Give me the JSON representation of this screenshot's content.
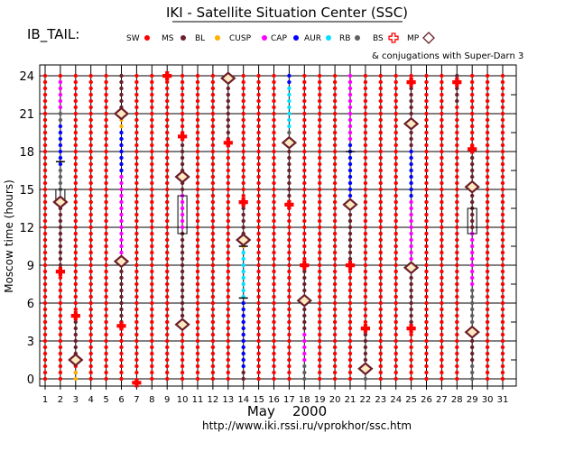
{
  "title": "IKI - Satellite Situation Center (SSC)",
  "panel_label": "IB_TAIL:",
  "legend": {
    "items": [
      {
        "key": "SW",
        "label": "SW",
        "color": "#ff0000"
      },
      {
        "key": "MS",
        "label": "MS",
        "color": "#6b1f2a"
      },
      {
        "key": "BL",
        "label": "BL",
        "color": "#ffb000"
      },
      {
        "key": "CUSP",
        "label": "CUSP",
        "color": "#ff00ff"
      },
      {
        "key": "CAP",
        "label": "CAP",
        "color": "#0000ff"
      },
      {
        "key": "AUR",
        "label": "AUR",
        "color": "#00e0ff"
      },
      {
        "key": "RB",
        "label": "RB",
        "color": "#606060"
      },
      {
        "key": "BS",
        "label": "BS",
        "color": "#ff0000",
        "marker": "cross"
      },
      {
        "key": "MP",
        "label": "MP",
        "color": "#6b1f2a",
        "marker": "diamond"
      }
    ],
    "note": "& conjugations with Super-Darn 3"
  },
  "footer_url": "http://www.iki.rssi.ru/vprokhor/ssc.htm",
  "chart_data": {
    "type": "scatter",
    "title": "IKI - Satellite Situation Center (SSC)",
    "xlabel": "May    2000",
    "ylabel": "Moscow time (hours)",
    "xlim": [
      1,
      31
    ],
    "ylim": [
      0,
      24
    ],
    "x_ticks": [
      1,
      2,
      3,
      4,
      5,
      6,
      7,
      8,
      9,
      10,
      11,
      12,
      13,
      14,
      15,
      16,
      17,
      18,
      19,
      20,
      21,
      22,
      23,
      24,
      25,
      26,
      27,
      28,
      29,
      30,
      31
    ],
    "y_ticks": [
      0,
      3,
      6,
      9,
      12,
      15,
      18,
      21,
      24
    ],
    "grid": true,
    "time_resolution_hours": 0.5,
    "region_colors": {
      "SW": "#ff0000",
      "MS": "#6b1f2a",
      "BL": "#ffb000",
      "CUSP": "#ff00ff",
      "CAP": "#0000ff",
      "AUR": "#00e0ff",
      "RB": "#606060"
    },
    "days": [
      {
        "day": 1,
        "segments": [
          {
            "r": "SW",
            "from": 0,
            "to": 24
          }
        ]
      },
      {
        "day": 2,
        "segments": [
          {
            "r": "SW",
            "from": 0,
            "to": 8.5
          },
          {
            "r": "MS",
            "from": 9,
            "to": 14
          },
          {
            "r": "RB",
            "from": 15,
            "to": 16.5
          },
          {
            "r": "CAP",
            "from": 17,
            "to": 20
          },
          {
            "r": "RB",
            "from": 20.5,
            "to": 21
          },
          {
            "r": "CUSP",
            "from": 21.5,
            "to": 23.5
          },
          {
            "r": "SW",
            "from": 24,
            "to": 24
          }
        ]
      },
      {
        "day": 3,
        "segments": [
          {
            "r": "SW",
            "from": 0.5,
            "to": 1
          },
          {
            "r": "BL",
            "from": 0,
            "to": 0.5
          },
          {
            "r": "MS",
            "from": 2,
            "to": 5
          },
          {
            "r": "SW",
            "from": 5.5,
            "to": 24
          }
        ]
      },
      {
        "day": 4,
        "segments": [
          {
            "r": "SW",
            "from": 0,
            "to": 24
          }
        ]
      },
      {
        "day": 5,
        "segments": [
          {
            "r": "SW",
            "from": 0,
            "to": 24
          }
        ]
      },
      {
        "day": 6,
        "segments": [
          {
            "r": "SW",
            "from": 0,
            "to": 4
          },
          {
            "r": "MS",
            "from": 4.5,
            "to": 9
          },
          {
            "r": "CUSP",
            "from": 10,
            "to": 16
          },
          {
            "r": "CAP",
            "from": 16.5,
            "to": 19.5
          },
          {
            "r": "BL",
            "from": 20,
            "to": 20.5
          },
          {
            "r": "MS",
            "from": 21.5,
            "to": 24
          }
        ]
      },
      {
        "day": 7,
        "segments": [
          {
            "r": "SW",
            "from": 0.5,
            "to": 24
          }
        ]
      },
      {
        "day": 8,
        "segments": [
          {
            "r": "SW",
            "from": 0,
            "to": 24
          }
        ]
      },
      {
        "day": 9,
        "segments": [
          {
            "r": "SW",
            "from": 0,
            "to": 24
          }
        ]
      },
      {
        "day": 10,
        "segments": [
          {
            "r": "SW",
            "from": 0,
            "to": 4
          },
          {
            "r": "MS",
            "from": 4.5,
            "to": 11.5
          },
          {
            "r": "CUSP",
            "from": 12,
            "to": 14.5
          },
          {
            "r": "MS",
            "from": 15,
            "to": 19
          },
          {
            "r": "SW",
            "from": 19.5,
            "to": 24
          }
        ]
      },
      {
        "day": 11,
        "segments": [
          {
            "r": "SW",
            "from": 0,
            "to": 24
          }
        ]
      },
      {
        "day": 12,
        "segments": [
          {
            "r": "SW",
            "from": 0,
            "to": 24
          }
        ]
      },
      {
        "day": 13,
        "segments": [
          {
            "r": "SW",
            "from": 0,
            "to": 18.5
          },
          {
            "r": "MS",
            "from": 19,
            "to": 23.5
          },
          {
            "r": "BL",
            "from": 24,
            "to": 24
          }
        ]
      },
      {
        "day": 14,
        "segments": [
          {
            "r": "MS",
            "from": 0,
            "to": 0.5
          },
          {
            "r": "CAP",
            "from": 1,
            "to": 6
          },
          {
            "r": "AUR",
            "from": 6.5,
            "to": 10
          },
          {
            "r": "BL",
            "from": 10.5,
            "to": 11
          },
          {
            "r": "MS",
            "from": 11.5,
            "to": 13.5
          },
          {
            "r": "SW",
            "from": 14,
            "to": 24
          }
        ]
      },
      {
        "day": 15,
        "segments": [
          {
            "r": "SW",
            "from": 0,
            "to": 24
          }
        ]
      },
      {
        "day": 16,
        "segments": [
          {
            "r": "SW",
            "from": 0,
            "to": 24
          }
        ]
      },
      {
        "day": 17,
        "segments": [
          {
            "r": "SW",
            "from": 0,
            "to": 13.5
          },
          {
            "r": "MS",
            "from": 14,
            "to": 18
          },
          {
            "r": "RB",
            "from": 18.5,
            "to": 19.5
          },
          {
            "r": "AUR",
            "from": 20,
            "to": 23
          },
          {
            "r": "CAP",
            "from": 23.5,
            "to": 24
          }
        ]
      },
      {
        "day": 18,
        "segments": [
          {
            "r": "RB",
            "from": 0,
            "to": 1
          },
          {
            "r": "CUSP",
            "from": 1.5,
            "to": 3.5
          },
          {
            "r": "MS",
            "from": 4,
            "to": 8.5
          },
          {
            "r": "SW",
            "from": 9,
            "to": 24
          }
        ]
      },
      {
        "day": 19,
        "segments": [
          {
            "r": "SW",
            "from": 0,
            "to": 24
          }
        ]
      },
      {
        "day": 20,
        "segments": [
          {
            "r": "SW",
            "from": 0,
            "to": 24
          }
        ]
      },
      {
        "day": 21,
        "segments": [
          {
            "r": "SW",
            "from": 0,
            "to": 9
          },
          {
            "r": "MS",
            "from": 9.5,
            "to": 13.5
          },
          {
            "r": "CAP",
            "from": 14,
            "to": 18.5
          },
          {
            "r": "CUSP",
            "from": 19,
            "to": 24
          }
        ]
      },
      {
        "day": 22,
        "segments": [
          {
            "r": "RB",
            "from": 0,
            "to": 0.5
          },
          {
            "r": "MS",
            "from": 1,
            "to": 3.5
          },
          {
            "r": "SW",
            "from": 4,
            "to": 24
          }
        ]
      },
      {
        "day": 23,
        "segments": [
          {
            "r": "SW",
            "from": 0,
            "to": 24
          }
        ]
      },
      {
        "day": 24,
        "segments": [
          {
            "r": "SW",
            "from": 0,
            "to": 24
          }
        ]
      },
      {
        "day": 25,
        "segments": [
          {
            "r": "SW",
            "from": 0,
            "to": 4
          },
          {
            "r": "MS",
            "from": 4.5,
            "to": 8.5
          },
          {
            "r": "CUSP",
            "from": 9,
            "to": 14
          },
          {
            "r": "CAP",
            "from": 14.5,
            "to": 18
          },
          {
            "r": "MS",
            "from": 18.5,
            "to": 23
          },
          {
            "r": "SW",
            "from": 23.5,
            "to": 24
          }
        ]
      },
      {
        "day": 26,
        "segments": [
          {
            "r": "SW",
            "from": 0,
            "to": 24
          }
        ]
      },
      {
        "day": 27,
        "segments": [
          {
            "r": "SW",
            "from": 0,
            "to": 24
          }
        ]
      },
      {
        "day": 28,
        "segments": [
          {
            "r": "SW",
            "from": 0,
            "to": 21.5
          },
          {
            "r": "MS",
            "from": 22,
            "to": 24
          }
        ]
      },
      {
        "day": 29,
        "segments": [
          {
            "r": "RB",
            "from": 0,
            "to": 1
          },
          {
            "r": "MS",
            "from": 1.5,
            "to": 3.5
          },
          {
            "r": "RB",
            "from": 4,
            "to": 7
          },
          {
            "r": "CUSP",
            "from": 7.5,
            "to": 11.5
          },
          {
            "r": "MS",
            "from": 12,
            "to": 17.5
          },
          {
            "r": "SW",
            "from": 18,
            "to": 24
          }
        ]
      },
      {
        "day": 30,
        "segments": [
          {
            "r": "SW",
            "from": 0,
            "to": 24
          }
        ]
      },
      {
        "day": 31,
        "segments": [
          {
            "r": "SW",
            "from": 0,
            "to": 24
          }
        ]
      }
    ],
    "bow_shock_crossings": [
      {
        "day": 2,
        "hour": 8.5
      },
      {
        "day": 3,
        "hour": 5
      },
      {
        "day": 6,
        "hour": 4.2
      },
      {
        "day": 7,
        "hour": -0.3
      },
      {
        "day": 9,
        "hour": 24
      },
      {
        "day": 10,
        "hour": 19.2
      },
      {
        "day": 13,
        "hour": 18.7
      },
      {
        "day": 14,
        "hour": 14
      },
      {
        "day": 17,
        "hour": 13.8
      },
      {
        "day": 18,
        "hour": 9
      },
      {
        "day": 21,
        "hour": 9
      },
      {
        "day": 22,
        "hour": 4
      },
      {
        "day": 25,
        "hour": 4
      },
      {
        "day": 25,
        "hour": 23.5
      },
      {
        "day": 28,
        "hour": 23.5
      },
      {
        "day": 29,
        "hour": 18.2
      }
    ],
    "magnetopause_crossings": [
      {
        "day": 2,
        "hour": 14
      },
      {
        "day": 3,
        "hour": 1.5
      },
      {
        "day": 6,
        "hour": 9.3
      },
      {
        "day": 6,
        "hour": 21
      },
      {
        "day": 10,
        "hour": 4.3
      },
      {
        "day": 10,
        "hour": 16
      },
      {
        "day": 13,
        "hour": 23.8
      },
      {
        "day": 14,
        "hour": 11
      },
      {
        "day": 17,
        "hour": 18.7
      },
      {
        "day": 18,
        "hour": 6.2
      },
      {
        "day": 21,
        "hour": 13.8
      },
      {
        "day": 22,
        "hour": 0.8
      },
      {
        "day": 25,
        "hour": 8.8
      },
      {
        "day": 25,
        "hour": 20.2
      },
      {
        "day": 29,
        "hour": 3.7
      },
      {
        "day": 29,
        "hour": 15.2
      }
    ],
    "superdarn_conjugation_boxes": [
      {
        "day": 2,
        "from": 14,
        "to": 15
      },
      {
        "day": 10,
        "from": 11.5,
        "to": 14.5
      },
      {
        "day": 29,
        "from": 11.5,
        "to": 13.5
      }
    ],
    "short_ticks": [
      {
        "day": 2,
        "hour": 17.2
      },
      {
        "day": 14,
        "hour": 10.5
      },
      {
        "day": 14,
        "hour": 6.4
      },
      {
        "day": 21,
        "hour": 18
      }
    ]
  }
}
